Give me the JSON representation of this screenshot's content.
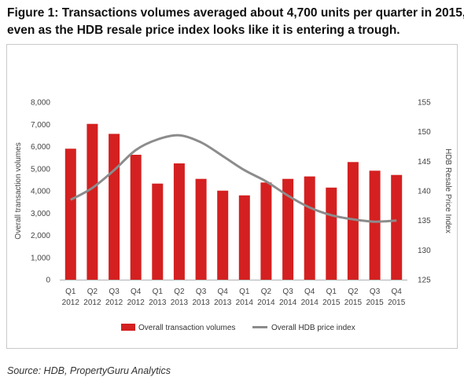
{
  "title_line1": "Figure 1: Transactions volumes averaged about 4,700 units per quarter in 2015,",
  "title_line2": "even as the HDB resale price index looks like it is entering a trough.",
  "source": "Source: HDB, PropertyGuru Analytics",
  "colors": {
    "bar": "#d42020",
    "line": "#8c8c8c"
  },
  "chart_data": {
    "type": "bar",
    "categories": [
      [
        "Q1",
        "2012"
      ],
      [
        "Q2",
        "2012"
      ],
      [
        "Q3",
        "2012"
      ],
      [
        "Q4",
        "2012"
      ],
      [
        "Q1",
        "2013"
      ],
      [
        "Q2",
        "2013"
      ],
      [
        "Q3",
        "2013"
      ],
      [
        "Q4",
        "2013"
      ],
      [
        "Q1",
        "2014"
      ],
      [
        "Q2",
        "2014"
      ],
      [
        "Q3",
        "2014"
      ],
      [
        "Q4",
        "2014"
      ],
      [
        "Q1",
        "2015"
      ],
      [
        "Q2",
        "2015"
      ],
      [
        "Q3",
        "2015"
      ],
      [
        "Q4",
        "2015"
      ]
    ],
    "series": [
      {
        "name": "Overall transaction volumes",
        "type": "bar",
        "axis": "left",
        "values": [
          5900,
          7020,
          6570,
          5630,
          4330,
          5240,
          4540,
          4010,
          3800,
          4380,
          4540,
          4650,
          4150,
          5300,
          4910,
          4720
        ]
      },
      {
        "name": "Overall HDB price index",
        "type": "line",
        "axis": "right",
        "values": [
          138.5,
          140.5,
          143.5,
          146.9,
          148.7,
          149.4,
          148.2,
          145.9,
          143.5,
          141.6,
          139.2,
          137.2,
          135.9,
          135.2,
          134.8,
          135.0
        ]
      }
    ],
    "ylabel": "Overall transaction volumes",
    "y2label": "HDB Resale Price Index",
    "ylim": [
      0,
      8000
    ],
    "y2lim": [
      125,
      155
    ],
    "yticks": [
      "0",
      "1,000",
      "2,000",
      "3,000",
      "4,000",
      "5,000",
      "6,000",
      "7,000",
      "8,000"
    ],
    "y2ticks": [
      "125",
      "130",
      "135",
      "140",
      "145",
      "150",
      "155"
    ],
    "grid": false,
    "legend": "bottom-center"
  }
}
